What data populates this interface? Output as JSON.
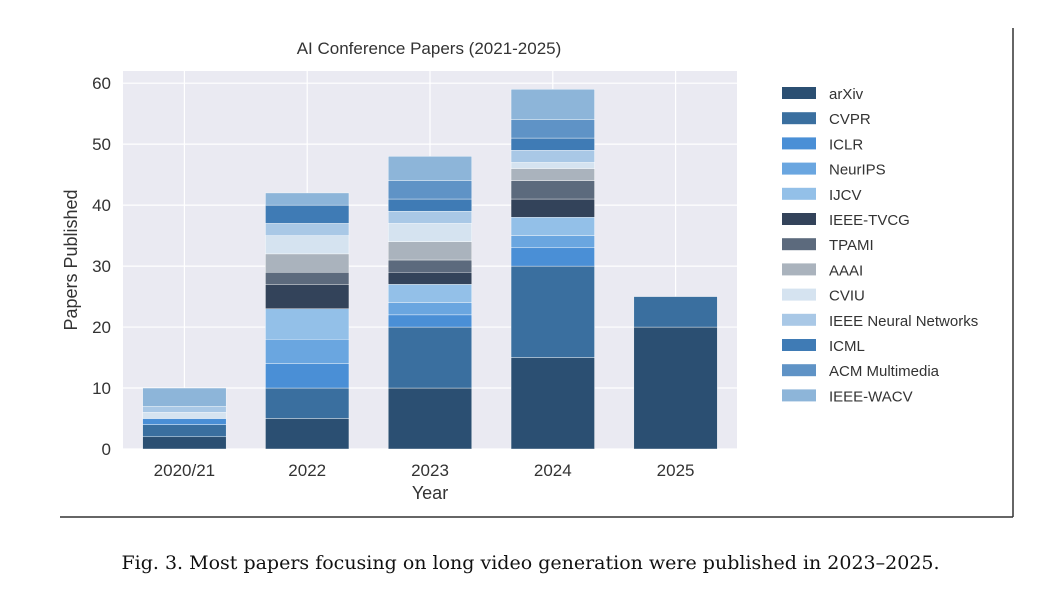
{
  "figure": {
    "caption": "Fig. 3.  Most papers focusing on long video generation were published in 2023–2025."
  },
  "chart_data": {
    "type": "bar",
    "stacked": true,
    "title": "AI Conference Papers (2021-2025)",
    "xlabel": "Year",
    "ylabel": "Papers Published",
    "categories": [
      "2020/21",
      "2022",
      "2023",
      "2024",
      "2025"
    ],
    "ylim": [
      0,
      62
    ],
    "yticks": [
      0,
      10,
      20,
      30,
      40,
      50,
      60
    ],
    "grid": true,
    "legend_position": "right",
    "series": [
      {
        "name": "arXiv",
        "color": "#2b4f72",
        "values": [
          2,
          5,
          10,
          15,
          20
        ]
      },
      {
        "name": "CVPR",
        "color": "#3a6f9f",
        "values": [
          2,
          5,
          10,
          15,
          5
        ]
      },
      {
        "name": "ICLR",
        "color": "#4a8fd6",
        "values": [
          1,
          4,
          2,
          3,
          0
        ]
      },
      {
        "name": "NeurIPS",
        "color": "#6aa6e0",
        "values": [
          0,
          4,
          2,
          2,
          0
        ]
      },
      {
        "name": "IJCV",
        "color": "#93c0e8",
        "values": [
          0,
          5,
          3,
          3,
          0
        ]
      },
      {
        "name": "IEEE-TVCG",
        "color": "#33435a",
        "values": [
          0,
          4,
          2,
          3,
          0
        ]
      },
      {
        "name": "TPAMI",
        "color": "#5c6a7d",
        "values": [
          0,
          2,
          2,
          3,
          0
        ]
      },
      {
        "name": "AAAI",
        "color": "#aab3bd",
        "values": [
          0,
          3,
          3,
          2,
          0
        ]
      },
      {
        "name": "CVIU",
        "color": "#d5e3f0",
        "values": [
          1,
          3,
          3,
          1,
          0
        ]
      },
      {
        "name": "IEEE Neural Networks",
        "color": "#a9c8e6",
        "values": [
          1,
          2,
          2,
          2,
          0
        ]
      },
      {
        "name": "ICML",
        "color": "#3f7bb5",
        "values": [
          0,
          3,
          2,
          2,
          0
        ]
      },
      {
        "name": "ACM Multimedia",
        "color": "#5f93c6",
        "values": [
          0,
          0,
          3,
          3,
          0
        ]
      },
      {
        "name": "IEEE-WACV",
        "color": "#8db5d9",
        "values": [
          3,
          2,
          4,
          5,
          0
        ]
      }
    ]
  }
}
